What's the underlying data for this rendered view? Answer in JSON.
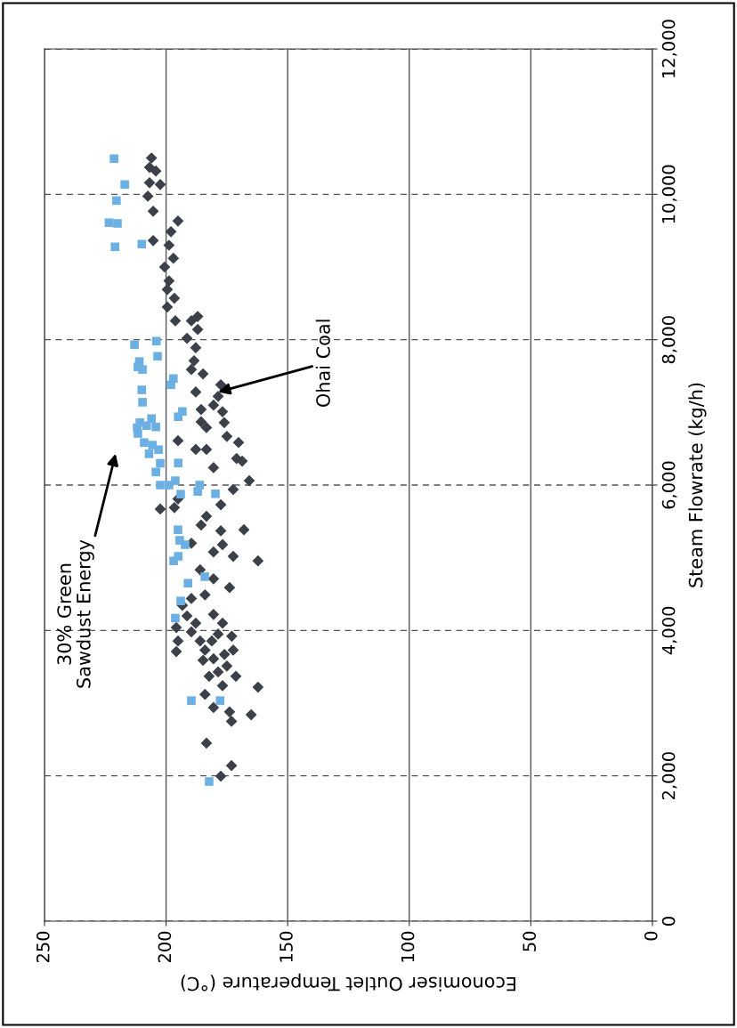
{
  "chart_data": {
    "type": "scatter",
    "xlabel": "Economiser Outlet Temperature (°C)",
    "ylabel": "Steam Flowrate (kg/h)",
    "xlim": [
      250,
      0
    ],
    "xticks": [
      250,
      200,
      150,
      100,
      50,
      0
    ],
    "ylim": [
      0,
      12000
    ],
    "yticks": [
      {
        "value": 0,
        "label": "0"
      },
      {
        "value": 2000,
        "label": "2,000"
      },
      {
        "value": 4000,
        "label": "4,000"
      },
      {
        "value": 6000,
        "label": "6,000"
      },
      {
        "value": 8000,
        "label": "8,000"
      },
      {
        "value": 10000,
        "label": "10,000"
      },
      {
        "value": 12000,
        "label": "12,000"
      }
    ],
    "grid": true,
    "series": [
      {
        "color": "#3c4049",
        "marker": "diamond",
        "x": [
          206,
          206.8,
          204.2,
          206.8,
          202.4,
          207.5,
          205.3,
          195.1,
          198,
          205.3,
          198.8,
          200.6,
          197,
          198.8,
          199.5,
          196.6,
          199.5,
          196.2,
          191.4,
          189.6,
          187.8,
          188.5,
          184.8,
          189.6,
          187.8,
          178.6,
          177.5,
          183.4,
          185.6,
          176.8,
          176.1,
          175,
          170.2,
          171,
          168.7,
          165.8,
          172.4,
          177.5,
          180.5,
          187.8,
          195.1,
          202.4,
          196.6,
          183.4,
          185.6,
          177.5,
          168,
          176.8,
          172.4,
          162.2,
          180.5,
          173.9,
          184,
          189.6,
          193.3,
          191.4,
          195.8,
          195.1,
          195.8,
          189.6,
          186,
          184,
          180.5,
          178.6,
          175,
          172.4,
          173,
          176.8,
          180.5,
          182.3,
          176.8,
          171.3,
          162.2,
          184,
          180.5,
          173.9,
          165,
          173.1,
          183.4,
          173.1,
          177.5,
          181.2,
          178.6,
          187.8,
          184.8,
          176,
          187,
          187,
          185.6,
          180.5,
          183.4,
          195.1,
          189.6,
          186,
          180.5
        ],
        "values": [
          10500,
          10370,
          10320,
          10160,
          10135,
          9975,
          9767,
          9633,
          9486,
          9364,
          9300,
          9000,
          9120,
          8810,
          8690,
          8570,
          8450,
          8260,
          8020,
          8260,
          7890,
          7710,
          7530,
          7590,
          7280,
          7220,
          7380,
          6790,
          6870,
          7010,
          6860,
          6670,
          6585,
          6365,
          6330,
          6060,
          5940,
          5730,
          6240,
          6490,
          6610,
          5670,
          5690,
          5570,
          5450,
          5370,
          5385,
          5180,
          5020,
          4957,
          4710,
          4590,
          4490,
          4440,
          4345,
          4200,
          4040,
          3855,
          3710,
          3980,
          3855,
          3730,
          3610,
          3430,
          3510,
          3730,
          3920,
          4100,
          4220,
          3370,
          3240,
          3370,
          3220,
          3120,
          2940,
          2880,
          2840,
          2750,
          2450,
          2140,
          1995,
          3855,
          3950,
          4100,
          3590,
          3670,
          8320,
          8140,
          7040,
          7100,
          6490,
          5810,
          5200,
          4835,
          5080
        ]
      },
      {
        "color": "#6cb0e3",
        "marker": "square",
        "x": [
          221.4,
          217,
          220.4,
          220,
          221,
          210,
          223.5,
          213,
          204,
          203.5,
          211,
          211.6,
          209.7,
          197,
          198,
          210,
          209.7,
          193.3,
          195,
          210.8,
          211.9,
          211.6,
          208,
          206,
          204.2,
          209,
          205.6,
          207,
          203.1,
          202.4,
          195,
          204.2,
          202.4,
          198.8,
          196.2,
          194,
          187,
          186.2,
          179.7,
          195.1,
          194.4,
          192.2,
          195,
          196.9,
          191,
          184.1,
          194,
          196.2,
          189.6,
          177.8,
          182.3
        ],
        "values": [
          10490,
          10135,
          9914,
          9600,
          9278,
          9315,
          9610,
          7931,
          7980,
          7772,
          7700,
          7625,
          7590,
          7466,
          7380,
          7310,
          7140,
          7013,
          6940,
          6860,
          6790,
          6710,
          6818,
          6915,
          6800,
          6585,
          6550,
          6430,
          6487,
          6300,
          6304,
          6180,
          6000,
          6000,
          6060,
          5875,
          5912,
          6000,
          5880,
          5385,
          5240,
          5180,
          5020,
          4957,
          4650,
          4740,
          4406,
          4170,
          3035,
          3035,
          1922
        ]
      }
    ],
    "annotations": [
      {
        "text": "Ohai Coal",
        "x": 178.6,
        "y": 7280
      },
      "30% Green\nSawdust Energy"
    ]
  }
}
